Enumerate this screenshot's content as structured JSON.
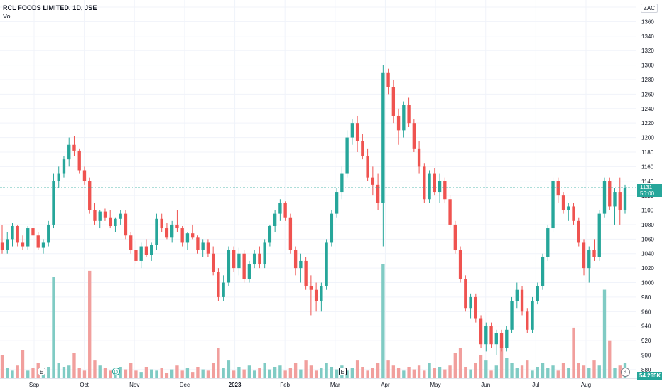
{
  "legend": {
    "title": "RCL FOODS LIMITED, 1D, JSE",
    "volume_label": "Vol"
  },
  "currency": "ZAC",
  "last_price": {
    "value": "1131",
    "countdown": "56:00"
  },
  "last_volume": "54.265K",
  "colors": {
    "up": "#26a69a",
    "down": "#ef5350",
    "volume_up": "#80cbc4",
    "volume_down": "#f19f9d",
    "grid": "#f0f3fa",
    "text": "#131722"
  },
  "events": [
    {
      "type": "earnings",
      "glyph": "E",
      "month_index": 0
    },
    {
      "type": "dividend",
      "glyph": "D",
      "month_index": 1
    },
    {
      "type": "earnings",
      "glyph": "E",
      "month_index": 6
    }
  ],
  "flash_icon": "lightning-icon",
  "chart_data": {
    "type": "candlestick",
    "title": "RCL FOODS LIMITED, 1D, JSE",
    "ylim": [
      875,
      1380
    ],
    "y_ticks": [
      880,
      900,
      920,
      940,
      960,
      980,
      1000,
      1020,
      1040,
      1060,
      1080,
      1100,
      1120,
      1140,
      1160,
      1180,
      1200,
      1220,
      1240,
      1260,
      1280,
      1300,
      1320,
      1340,
      1360,
      1380
    ],
    "x_ticks": [
      "Sep",
      "Oct",
      "Nov",
      "Dec",
      "2023",
      "Feb",
      "Mar",
      "Apr",
      "May",
      "Jun",
      "Jul",
      "Aug"
    ],
    "grid": true,
    "current_price": 1131,
    "series": [
      {
        "name": "Price",
        "ohlc": [
          [
            1055,
            1080,
            1040,
            1045
          ],
          [
            1045,
            1070,
            1040,
            1060
          ],
          [
            1060,
            1082,
            1050,
            1078
          ],
          [
            1078,
            1080,
            1050,
            1055
          ],
          [
            1055,
            1065,
            1045,
            1050
          ],
          [
            1050,
            1078,
            1045,
            1075
          ],
          [
            1075,
            1080,
            1060,
            1065
          ],
          [
            1065,
            1070,
            1045,
            1048
          ],
          [
            1048,
            1060,
            1040,
            1055
          ],
          [
            1055,
            1085,
            1050,
            1080
          ],
          [
            1080,
            1150,
            1075,
            1140
          ],
          [
            1140,
            1160,
            1130,
            1150
          ],
          [
            1150,
            1175,
            1145,
            1170
          ],
          [
            1170,
            1200,
            1160,
            1190
          ],
          [
            1190,
            1202,
            1175,
            1182
          ],
          [
            1182,
            1185,
            1150,
            1155
          ],
          [
            1155,
            1160,
            1135,
            1140
          ],
          [
            1140,
            1145,
            1095,
            1100
          ],
          [
            1100,
            1110,
            1080,
            1085
          ],
          [
            1085,
            1100,
            1075,
            1098
          ],
          [
            1098,
            1102,
            1085,
            1090
          ],
          [
            1090,
            1100,
            1075,
            1078
          ],
          [
            1078,
            1090,
            1070,
            1088
          ],
          [
            1088,
            1100,
            1080,
            1095
          ],
          [
            1095,
            1100,
            1060,
            1065
          ],
          [
            1065,
            1070,
            1040,
            1045
          ],
          [
            1045,
            1058,
            1025,
            1030
          ],
          [
            1030,
            1055,
            1020,
            1050
          ],
          [
            1050,
            1060,
            1035,
            1038
          ],
          [
            1038,
            1055,
            1030,
            1052
          ],
          [
            1052,
            1095,
            1045,
            1088
          ],
          [
            1088,
            1095,
            1070,
            1075
          ],
          [
            1075,
            1082,
            1060,
            1062
          ],
          [
            1062,
            1085,
            1055,
            1080
          ],
          [
            1080,
            1100,
            1070,
            1075
          ],
          [
            1075,
            1078,
            1050,
            1055
          ],
          [
            1055,
            1070,
            1045,
            1068
          ],
          [
            1068,
            1080,
            1060,
            1062
          ],
          [
            1062,
            1065,
            1040,
            1045
          ],
          [
            1045,
            1060,
            1035,
            1055
          ],
          [
            1055,
            1060,
            1035,
            1040
          ],
          [
            1040,
            1050,
            1010,
            1015
          ],
          [
            1015,
            1020,
            975,
            980
          ],
          [
            980,
            1010,
            975,
            1000
          ],
          [
            1000,
            1050,
            995,
            1045
          ],
          [
            1045,
            1050,
            1015,
            1020
          ],
          [
            1020,
            1048,
            1010,
            1040
          ],
          [
            1040,
            1045,
            1000,
            1005
          ],
          [
            1005,
            1030,
            1000,
            1025
          ],
          [
            1025,
            1045,
            1020,
            1040
          ],
          [
            1040,
            1050,
            1020,
            1025
          ],
          [
            1025,
            1060,
            1020,
            1055
          ],
          [
            1055,
            1080,
            1050,
            1078
          ],
          [
            1078,
            1100,
            1070,
            1095
          ],
          [
            1095,
            1115,
            1085,
            1110
          ],
          [
            1110,
            1112,
            1085,
            1090
          ],
          [
            1090,
            1095,
            1040,
            1045
          ],
          [
            1045,
            1050,
            1010,
            1020
          ],
          [
            1020,
            1040,
            1000,
            1030
          ],
          [
            1030,
            1035,
            990,
            995
          ],
          [
            995,
            1010,
            955,
            990
          ],
          [
            990,
            1000,
            960,
            975
          ],
          [
            975,
            1000,
            960,
            995
          ],
          [
            995,
            1060,
            990,
            1055
          ],
          [
            1055,
            1100,
            1050,
            1095
          ],
          [
            1095,
            1130,
            1090,
            1125
          ],
          [
            1125,
            1160,
            1115,
            1150
          ],
          [
            1150,
            1210,
            1145,
            1200
          ],
          [
            1200,
            1225,
            1190,
            1220
          ],
          [
            1220,
            1230,
            1180,
            1195
          ],
          [
            1195,
            1205,
            1170,
            1175
          ],
          [
            1175,
            1185,
            1140,
            1145
          ],
          [
            1145,
            1160,
            1120,
            1135
          ],
          [
            1135,
            1150,
            1100,
            1110
          ],
          [
            1110,
            1300,
            1050,
            1290
          ],
          [
            1290,
            1295,
            1260,
            1270
          ],
          [
            1270,
            1280,
            1220,
            1230
          ],
          [
            1230,
            1240,
            1190,
            1210
          ],
          [
            1210,
            1250,
            1200,
            1245
          ],
          [
            1245,
            1255,
            1215,
            1220
          ],
          [
            1220,
            1225,
            1180,
            1185
          ],
          [
            1185,
            1195,
            1150,
            1160
          ],
          [
            1160,
            1165,
            1110,
            1115
          ],
          [
            1115,
            1155,
            1110,
            1150
          ],
          [
            1150,
            1158,
            1120,
            1125
          ],
          [
            1125,
            1150,
            1110,
            1140
          ],
          [
            1140,
            1145,
            1110,
            1115
          ],
          [
            1115,
            1120,
            1075,
            1080
          ],
          [
            1080,
            1085,
            1040,
            1045
          ],
          [
            1045,
            1050,
            1000,
            1005
          ],
          [
            1005,
            1010,
            960,
            965
          ],
          [
            965,
            985,
            950,
            980
          ],
          [
            980,
            985,
            945,
            950
          ],
          [
            950,
            955,
            910,
            915
          ],
          [
            915,
            945,
            905,
            940
          ],
          [
            940,
            945,
            910,
            915
          ],
          [
            915,
            935,
            900,
            930
          ],
          [
            930,
            935,
            905,
            910
          ],
          [
            910,
            940,
            905,
            935
          ],
          [
            935,
            980,
            930,
            975
          ],
          [
            975,
            1000,
            965,
            990
          ],
          [
            990,
            995,
            955,
            960
          ],
          [
            960,
            965,
            930,
            935
          ],
          [
            935,
            980,
            930,
            975
          ],
          [
            975,
            1000,
            970,
            995
          ],
          [
            995,
            1040,
            990,
            1035
          ],
          [
            1035,
            1080,
            1030,
            1075
          ],
          [
            1075,
            1145,
            1070,
            1140
          ],
          [
            1140,
            1145,
            1110,
            1120
          ],
          [
            1120,
            1125,
            1095,
            1100
          ],
          [
            1100,
            1110,
            1085,
            1105
          ],
          [
            1105,
            1110,
            1080,
            1085
          ],
          [
            1085,
            1090,
            1050,
            1055
          ],
          [
            1055,
            1060,
            1010,
            1020
          ],
          [
            1020,
            1050,
            1000,
            1045
          ],
          [
            1045,
            1060,
            1030,
            1035
          ],
          [
            1035,
            1100,
            1030,
            1095
          ],
          [
            1095,
            1145,
            1090,
            1140
          ],
          [
            1140,
            1145,
            1100,
            1105
          ],
          [
            1105,
            1130,
            1080,
            1125
          ],
          [
            1125,
            1145,
            1080,
            1100
          ],
          [
            1100,
            1135,
            1095,
            1131
          ]
        ],
        "volume": [
          18,
          8,
          6,
          10,
          22,
          6,
          8,
          12,
          7,
          9,
          80,
          12,
          9,
          10,
          20,
          8,
          6,
          85,
          14,
          10,
          8,
          6,
          5,
          9,
          7,
          12,
          6,
          5,
          9,
          7,
          6,
          8,
          4,
          7,
          10,
          6,
          8,
          5,
          9,
          7,
          6,
          12,
          24,
          8,
          14,
          6,
          9,
          7,
          10,
          6,
          8,
          12,
          7,
          9,
          10,
          6,
          8,
          12,
          7,
          14,
          10,
          6,
          8,
          12,
          9,
          7,
          10,
          6,
          8,
          14,
          9,
          6,
          8,
          12,
          90,
          14,
          10,
          8,
          6,
          9,
          7,
          10,
          6,
          12,
          8,
          9,
          7,
          10,
          20,
          24,
          9,
          7,
          12,
          18,
          14,
          6,
          10,
          30,
          16,
          12,
          8,
          10,
          14,
          6,
          9,
          12,
          8,
          10,
          6,
          12,
          8,
          40,
          12,
          10,
          8,
          14,
          10,
          70,
          30,
          8,
          10,
          12
        ]
      }
    ]
  }
}
